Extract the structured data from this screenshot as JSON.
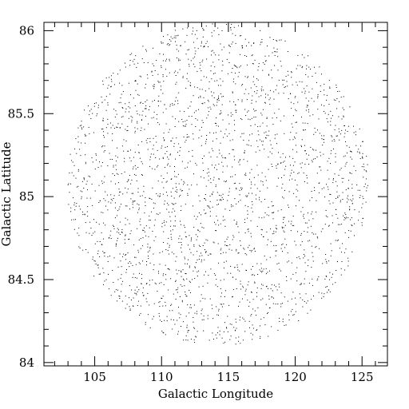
{
  "chart_data": {
    "type": "scatter",
    "title": "",
    "xlabel": "Galactic Longitude",
    "ylabel": "Galactic Latitude",
    "xlim": [
      101.2,
      126.9
    ],
    "ylim": [
      83.98,
      86.05
    ],
    "x_ticks": [
      105,
      110,
      115,
      120,
      125
    ],
    "x_tick_labels": [
      "105",
      "110",
      "115",
      "120",
      "125"
    ],
    "y_ticks": [
      84,
      84.5,
      85,
      85.5,
      86
    ],
    "y_tick_labels": [
      "84",
      "84.5",
      "85",
      "85.5",
      "86"
    ],
    "x_minor_step": 1,
    "y_minor_step": 0.1,
    "grid": false,
    "point_color": "#000000",
    "footprint": {
      "shape": "circle",
      "center_lon": 114.2,
      "center_lat": 85.075,
      "radius_deg": 0.97,
      "point_count": 2600
    }
  }
}
